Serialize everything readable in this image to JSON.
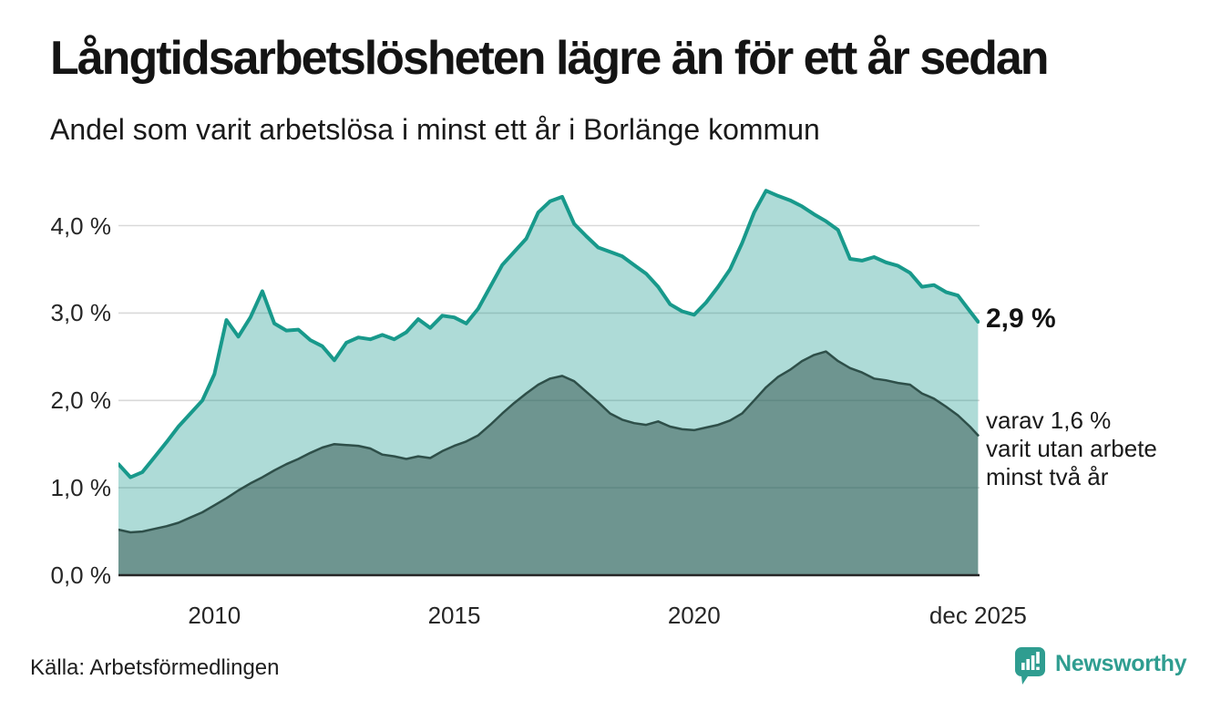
{
  "header": {
    "title": "Långtidsarbetslösheten lägre än för ett år sedan",
    "subtitle": "Andel som varit arbetslösa i minst ett år i Borlänge kommun"
  },
  "annotations": {
    "latest_total": "2,9 %",
    "secondary_line1": "varav 1,6 %",
    "secondary_line2": "varit utan arbete",
    "secondary_line3": "minst två år"
  },
  "footer": {
    "source": "Källa: Arbetsförmedlingen",
    "brand": "Newsworthy"
  },
  "colors": {
    "accent_teal": "#18998b",
    "accent_teal_fill": "rgba(24,153,139,0.35)",
    "dark_line": "#2e4f49",
    "dark_fill": "rgba(45,79,73,0.5)",
    "gridline": "#d9d9d9",
    "baseline": "#262626",
    "brand_teal": "#2f9d90",
    "text": "#1a1a1a"
  },
  "chart_data": {
    "type": "area",
    "title": "Långtidsarbetslösheten lägre än för ett år sedan",
    "subtitle": "Andel som varit arbetslösa i minst ett år i Borlänge kommun",
    "xlabel": "",
    "ylabel": "",
    "grid": "horizontal",
    "legend_position": "right-annotations",
    "xlim": [
      2008.0,
      2025.95
    ],
    "ylim": [
      0,
      4.6
    ],
    "yticks": [
      {
        "v": 0,
        "label": "0,0 %"
      },
      {
        "v": 1,
        "label": "1,0 %"
      },
      {
        "v": 2,
        "label": "2,0 %"
      },
      {
        "v": 3,
        "label": "3,0 %"
      },
      {
        "v": 4,
        "label": "4,0 %"
      }
    ],
    "xticks": [
      {
        "v": 2010,
        "label": "2010"
      },
      {
        "v": 2015,
        "label": "2015"
      },
      {
        "v": 2020,
        "label": "2020"
      },
      {
        "v": 2025.92,
        "label": "dec 2025"
      }
    ],
    "x": [
      2008.0,
      2008.25,
      2008.5,
      2008.75,
      2009.0,
      2009.25,
      2009.5,
      2009.75,
      2010.0,
      2010.25,
      2010.5,
      2010.75,
      2011.0,
      2011.25,
      2011.5,
      2011.75,
      2012.0,
      2012.25,
      2012.5,
      2012.75,
      2013.0,
      2013.25,
      2013.5,
      2013.75,
      2014.0,
      2014.25,
      2014.5,
      2014.75,
      2015.0,
      2015.25,
      2015.5,
      2015.75,
      2016.0,
      2016.25,
      2016.5,
      2016.75,
      2017.0,
      2017.25,
      2017.5,
      2017.75,
      2018.0,
      2018.25,
      2018.5,
      2018.75,
      2019.0,
      2019.25,
      2019.5,
      2019.75,
      2020.0,
      2020.25,
      2020.5,
      2020.75,
      2021.0,
      2021.25,
      2021.5,
      2021.75,
      2022.0,
      2022.25,
      2022.5,
      2022.75,
      2023.0,
      2023.25,
      2023.5,
      2023.75,
      2024.0,
      2024.25,
      2024.5,
      2024.75,
      2025.0,
      2025.25,
      2025.5,
      2025.75,
      2025.92
    ],
    "series": [
      {
        "name": "Andel som varit arbetslösa i minst ett år",
        "last_value_label": "2,9 %",
        "values": [
          1.27,
          1.12,
          1.18,
          1.35,
          1.52,
          1.7,
          1.85,
          2.0,
          2.3,
          2.92,
          2.73,
          2.95,
          3.25,
          2.88,
          2.8,
          2.81,
          2.69,
          2.62,
          2.46,
          2.66,
          2.72,
          2.7,
          2.75,
          2.7,
          2.78,
          2.93,
          2.83,
          2.97,
          2.95,
          2.88,
          3.05,
          3.3,
          3.55,
          3.7,
          3.85,
          4.15,
          4.28,
          4.33,
          4.02,
          3.88,
          3.75,
          3.7,
          3.65,
          3.55,
          3.45,
          3.3,
          3.1,
          3.02,
          2.98,
          3.12,
          3.3,
          3.5,
          3.8,
          4.15,
          4.4,
          4.34,
          4.29,
          4.22,
          4.13,
          4.05,
          3.95,
          3.62,
          3.6,
          3.64,
          3.58,
          3.54,
          3.46,
          3.3,
          3.32,
          3.24,
          3.2,
          3.02,
          2.9
        ]
      },
      {
        "name": "varav varit utan arbete minst två år",
        "last_value_label": "1,6 %",
        "values": [
          0.52,
          0.49,
          0.5,
          0.53,
          0.56,
          0.6,
          0.66,
          0.72,
          0.8,
          0.88,
          0.97,
          1.05,
          1.12,
          1.2,
          1.27,
          1.33,
          1.4,
          1.46,
          1.5,
          1.49,
          1.48,
          1.45,
          1.38,
          1.36,
          1.33,
          1.36,
          1.34,
          1.42,
          1.48,
          1.53,
          1.6,
          1.72,
          1.85,
          1.97,
          2.08,
          2.18,
          2.25,
          2.28,
          2.22,
          2.1,
          1.98,
          1.85,
          1.78,
          1.74,
          1.72,
          1.76,
          1.7,
          1.67,
          1.66,
          1.69,
          1.72,
          1.77,
          1.85,
          2.0,
          2.15,
          2.27,
          2.35,
          2.45,
          2.52,
          2.56,
          2.45,
          2.37,
          2.32,
          2.25,
          2.23,
          2.2,
          2.18,
          2.08,
          2.02,
          1.93,
          1.83,
          1.7,
          1.6
        ]
      }
    ]
  }
}
